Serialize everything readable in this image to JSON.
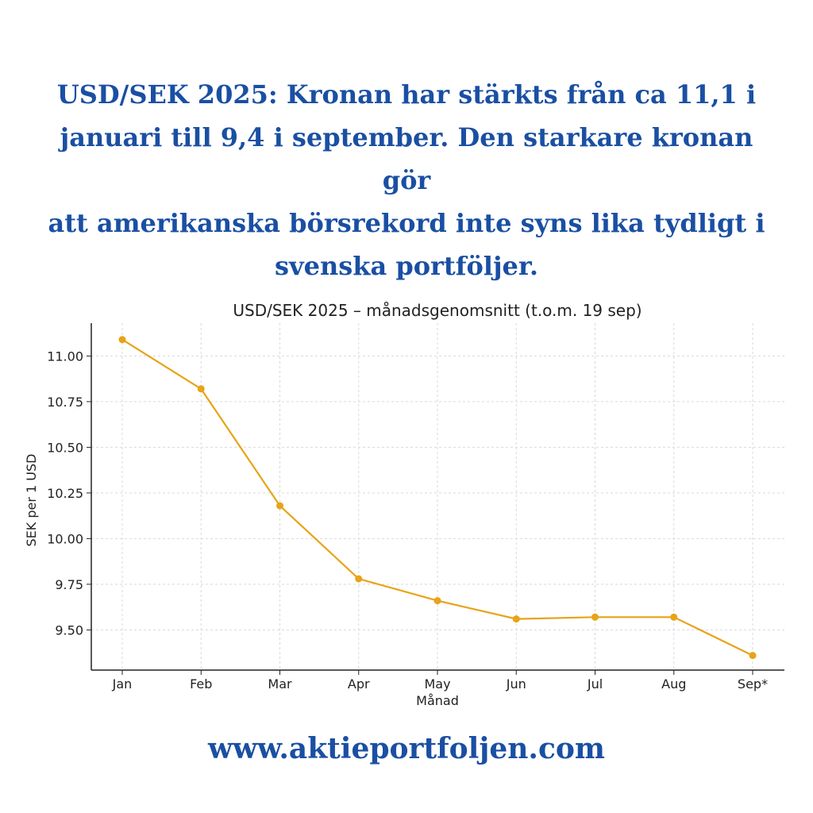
{
  "headline": {
    "lines": [
      "USD/SEK 2025: Kronan har stärkts från ca 11,1 i",
      "januari till 9,4 i september. Den starkare kronan gör",
      "att amerikanska börsrekord inte syns lika tydligt i",
      "svenska portföljer."
    ]
  },
  "footer": {
    "url": "www.aktieportfoljen.com"
  },
  "colors": {
    "accent": "#1a4fa3",
    "line": "#e8a317"
  },
  "chart_data": {
    "type": "line",
    "title": "USD/SEK 2025 – månadsgenomsnitt (t.o.m. 19 sep)",
    "xlabel": "Månad",
    "ylabel": "SEK per 1 USD",
    "categories": [
      "Jan",
      "Feb",
      "Mar",
      "Apr",
      "May",
      "Jun",
      "Jul",
      "Aug",
      "Sep*"
    ],
    "series": [
      {
        "values": [
          11.09,
          10.82,
          10.18,
          9.78,
          9.66,
          9.56,
          9.57,
          9.57,
          9.36
        ]
      }
    ],
    "ylim": [
      9.28,
      11.18
    ],
    "yticks": [
      9.5,
      9.75,
      10.0,
      10.25,
      10.5,
      10.75,
      11.0
    ],
    "ytick_labels": [
      "9.50",
      "9.75",
      "10.00",
      "10.25",
      "10.50",
      "10.75",
      "11.00"
    ],
    "grid": true,
    "legend": "none"
  }
}
